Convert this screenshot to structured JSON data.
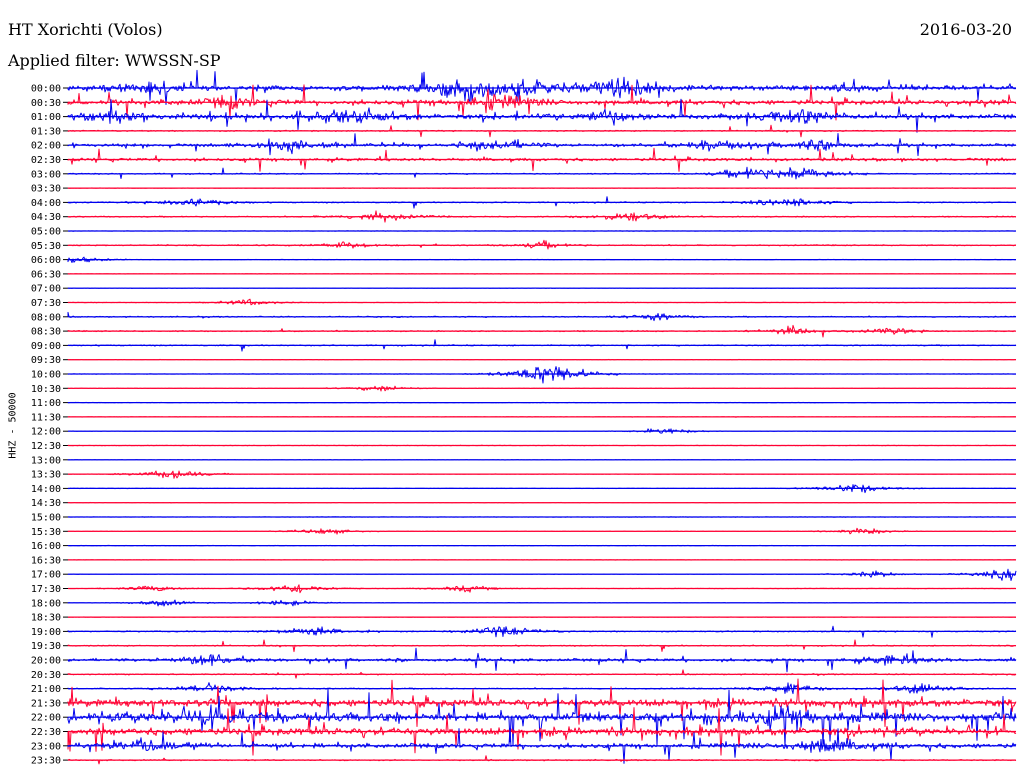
{
  "header": {
    "station": "HT Xorichti (Volos)",
    "date": "2016-03-20",
    "filter_label": "Applied filter:",
    "filter_name": "WWSSN-SP"
  },
  "channel": "HHZ - 50000",
  "colors": {
    "blue": "#0000ee",
    "red": "#ff0033",
    "axis": "#000000"
  },
  "chart_data": {
    "type": "line",
    "title": "HT Xorichti (Volos)",
    "date": "2016-03-20",
    "filter": "WWSSN-SP",
    "ylabel": "HHZ - 50000",
    "row_labels": [
      "00:00",
      "00:30",
      "01:00",
      "01:30",
      "02:00",
      "02:30",
      "03:00",
      "03:30",
      "04:00",
      "04:30",
      "05:00",
      "05:30",
      "06:00",
      "06:30",
      "07:00",
      "07:30",
      "08:00",
      "08:30",
      "09:00",
      "09:30",
      "10:00",
      "10:30",
      "11:00",
      "11:30",
      "12:00",
      "12:30",
      "13:00",
      "13:30",
      "14:00",
      "14:30",
      "15:00",
      "15:30",
      "16:00",
      "16:30",
      "17:00",
      "17:30",
      "18:00",
      "18:30",
      "19:00",
      "19:30",
      "20:00",
      "20:30",
      "21:00",
      "21:30",
      "22:00",
      "22:30",
      "23:00",
      "23:30"
    ],
    "row_colors": [
      "blue",
      "red"
    ],
    "row_duration_minutes": 30,
    "activity_level": [
      3,
      3,
      3,
      1,
      2,
      2,
      1,
      0,
      1,
      1,
      0,
      1,
      0,
      0,
      0,
      0,
      1,
      1,
      1,
      0,
      0,
      0,
      0,
      0,
      0,
      0,
      0,
      0,
      0,
      0,
      0,
      0,
      0,
      0,
      0,
      0,
      0,
      0,
      1,
      1,
      2,
      1,
      1,
      4,
      5,
      4,
      3,
      1
    ],
    "events": [
      {
        "row": "00:00",
        "x": 0.08,
        "amp": 3
      },
      {
        "row": "00:00",
        "x": 0.42,
        "amp": 5
      },
      {
        "row": "00:00",
        "x": 0.48,
        "amp": 4
      },
      {
        "row": "00:00",
        "x": 0.58,
        "amp": 5
      },
      {
        "row": "00:00",
        "x": 0.82,
        "amp": 2
      },
      {
        "row": "00:30",
        "x": 0.17,
        "amp": 3
      },
      {
        "row": "00:30",
        "x": 0.45,
        "amp": 4
      },
      {
        "row": "01:00",
        "x": 0.05,
        "amp": 3
      },
      {
        "row": "01:00",
        "x": 0.3,
        "amp": 4
      },
      {
        "row": "01:00",
        "x": 0.57,
        "amp": 3
      },
      {
        "row": "01:00",
        "x": 0.77,
        "amp": 4
      },
      {
        "row": "02:00",
        "x": 0.23,
        "amp": 3
      },
      {
        "row": "02:00",
        "x": 0.46,
        "amp": 3
      },
      {
        "row": "02:00",
        "x": 0.68,
        "amp": 3
      },
      {
        "row": "02:00",
        "x": 0.79,
        "amp": 3
      },
      {
        "row": "03:00",
        "x": 0.72,
        "amp": 3
      },
      {
        "row": "03:00",
        "x": 0.77,
        "amp": 4
      },
      {
        "row": "04:00",
        "x": 0.13,
        "amp": 3
      },
      {
        "row": "04:00",
        "x": 0.76,
        "amp": 3
      },
      {
        "row": "04:30",
        "x": 0.33,
        "amp": 3
      },
      {
        "row": "04:30",
        "x": 0.59,
        "amp": 3
      },
      {
        "row": "05:30",
        "x": 0.29,
        "amp": 2
      },
      {
        "row": "05:30",
        "x": 0.5,
        "amp": 2
      },
      {
        "row": "06:00",
        "x": 0.01,
        "amp": 2
      },
      {
        "row": "07:30",
        "x": 0.19,
        "amp": 2
      },
      {
        "row": "08:00",
        "x": 0.62,
        "amp": 2
      },
      {
        "row": "08:30",
        "x": 0.76,
        "amp": 2
      },
      {
        "row": "08:30",
        "x": 0.87,
        "amp": 2
      },
      {
        "row": "10:00",
        "x": 0.5,
        "amp": 4
      },
      {
        "row": "10:00",
        "x": 0.52,
        "amp": 3
      },
      {
        "row": "10:30",
        "x": 0.33,
        "amp": 2
      },
      {
        "row": "12:00",
        "x": 0.63,
        "amp": 2
      },
      {
        "row": "13:30",
        "x": 0.11,
        "amp": 3
      },
      {
        "row": "14:00",
        "x": 0.83,
        "amp": 3
      },
      {
        "row": "15:30",
        "x": 0.27,
        "amp": 2
      },
      {
        "row": "15:30",
        "x": 0.84,
        "amp": 2
      },
      {
        "row": "17:00",
        "x": 0.85,
        "amp": 2
      },
      {
        "row": "17:00",
        "x": 0.99,
        "amp": 3
      },
      {
        "row": "17:30",
        "x": 0.09,
        "amp": 2
      },
      {
        "row": "17:30",
        "x": 0.24,
        "amp": 3
      },
      {
        "row": "17:30",
        "x": 0.42,
        "amp": 2
      },
      {
        "row": "18:00",
        "x": 0.1,
        "amp": 2
      },
      {
        "row": "18:00",
        "x": 0.23,
        "amp": 2
      },
      {
        "row": "19:00",
        "x": 0.26,
        "amp": 3
      },
      {
        "row": "19:00",
        "x": 0.46,
        "amp": 3
      },
      {
        "row": "20:00",
        "x": 0.15,
        "amp": 3
      },
      {
        "row": "20:00",
        "x": 0.87,
        "amp": 3
      },
      {
        "row": "21:00",
        "x": 0.15,
        "amp": 3
      },
      {
        "row": "21:00",
        "x": 0.76,
        "amp": 3
      },
      {
        "row": "21:00",
        "x": 0.9,
        "amp": 3
      },
      {
        "row": "22:00",
        "x": 0.15,
        "amp": 5
      },
      {
        "row": "22:00",
        "x": 0.76,
        "amp": 5
      },
      {
        "row": "23:00",
        "x": 0.08,
        "amp": 3
      },
      {
        "row": "23:00",
        "x": 0.8,
        "amp": 4
      }
    ]
  }
}
